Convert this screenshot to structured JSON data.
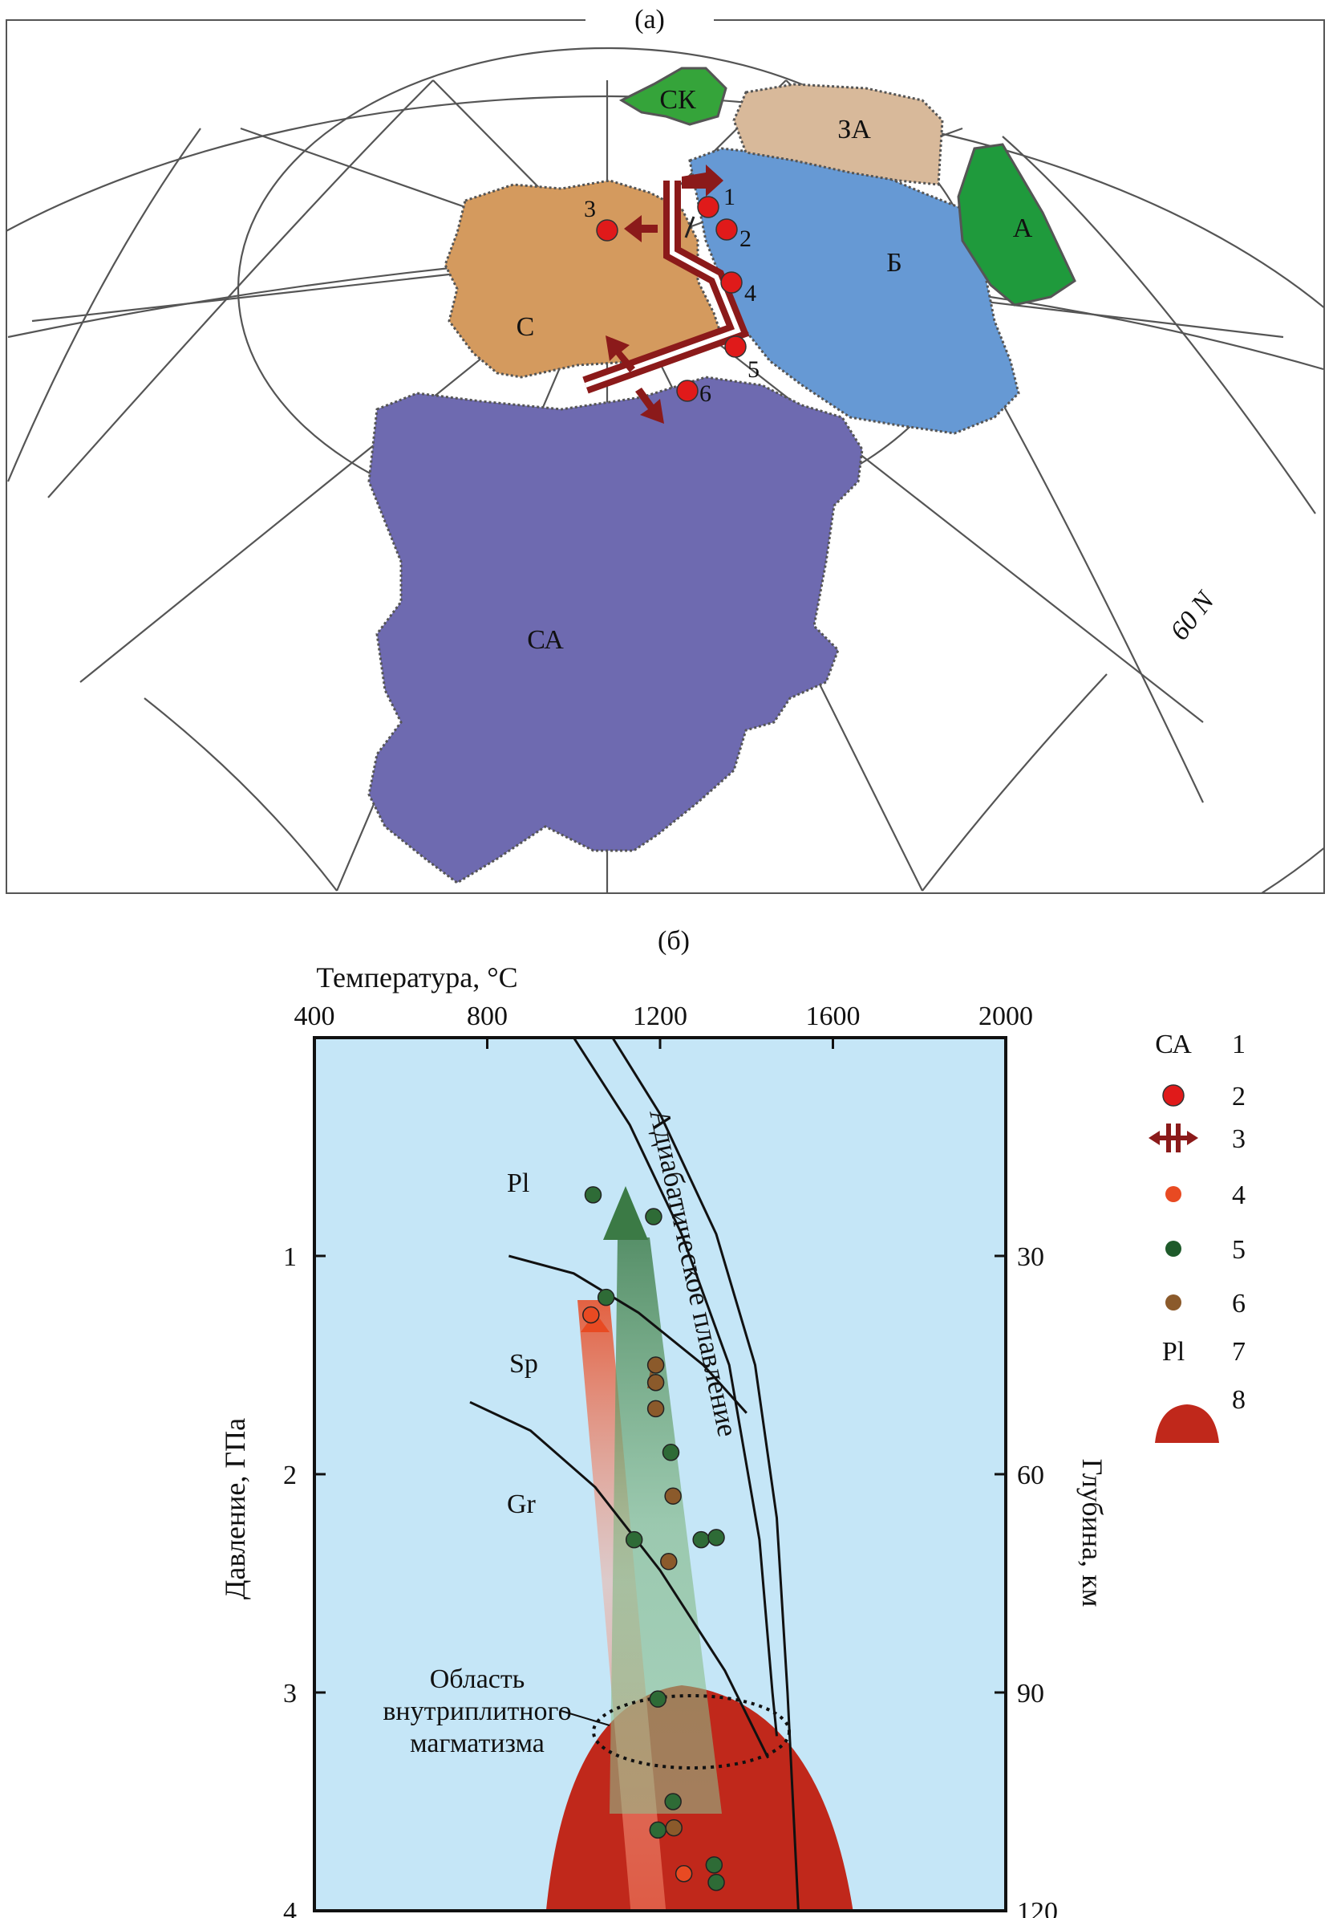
{
  "panel_a": {
    "title": "(a)",
    "latitude_label": "60 N",
    "blocks": [
      {
        "id": "ck",
        "label": "СК",
        "color": "#35a43a"
      },
      {
        "id": "za",
        "label": "ЗА",
        "color": "#d8b99a"
      },
      {
        "id": "a",
        "label": "А",
        "color": "#1f9a3c"
      },
      {
        "id": "b",
        "label": "Б",
        "color": "#6699d4"
      },
      {
        "id": "c",
        "label": "С",
        "color": "#d49a5e"
      },
      {
        "id": "ca",
        "label": "СА",
        "color": "#6e6ab0"
      }
    ],
    "sites": [
      "1",
      "2",
      "3",
      "4",
      "5",
      "6"
    ],
    "rift_color": "#8b1a1a"
  },
  "panel_b": {
    "title": "(б)",
    "x_axis_label": "Температура, °C",
    "y_left_label": "Давление, ГПа",
    "y_right_label": "Глубина, км",
    "x_ticks": [
      "400",
      "800",
      "1200",
      "1600",
      "2000"
    ],
    "y_ticks": [
      "1",
      "2",
      "3",
      "4"
    ],
    "depth_ticks": [
      "30",
      "60",
      "90",
      "120"
    ],
    "facies": [
      "Pl",
      "Sp",
      "Gr"
    ],
    "adiabat_label": "Адиабатическое плавление",
    "region_label_lines": [
      "Область",
      "внутриплитного",
      "магматизма"
    ],
    "colors": {
      "plot_bg": "#c5e6f7",
      "plume": "#c0281b",
      "red_arrow": "#e84a22",
      "green_arrow": "#3b7a45"
    }
  },
  "legend": {
    "items": [
      {
        "number": "1",
        "symbol_text": "СА"
      },
      {
        "number": "2",
        "symbol": "red-dot"
      },
      {
        "number": "3",
        "symbol": "rift-icon"
      },
      {
        "number": "4",
        "symbol": "orange-dot"
      },
      {
        "number": "5",
        "symbol": "green-dot"
      },
      {
        "number": "6",
        "symbol": "brown-dot"
      },
      {
        "number": "7",
        "symbol_text": "Pl"
      },
      {
        "number": "8",
        "symbol": "plume-icon"
      }
    ]
  },
  "chart_data": {
    "type": "scatter",
    "xlabel": "Температура, °C",
    "ylabel": "Давление, ГПа",
    "xlim": [
      400,
      2000
    ],
    "ylim": [
      4,
      0
    ],
    "secondary_ylabel": "Глубина, км",
    "series": [
      {
        "name": "4",
        "color": "#e84a22",
        "points": [
          [
            1040,
            1.27
          ],
          [
            1255,
            3.83
          ]
        ]
      },
      {
        "name": "5",
        "color": "#2e6b36",
        "points": [
          [
            1045,
            0.72
          ],
          [
            1185,
            0.82
          ],
          [
            1075,
            1.19
          ],
          [
            1225,
            1.9
          ],
          [
            1140,
            2.3
          ],
          [
            1295,
            2.3
          ],
          [
            1330,
            2.29
          ],
          [
            1195,
            3.03
          ],
          [
            1230,
            3.5
          ],
          [
            1195,
            3.63
          ],
          [
            1325,
            3.79
          ],
          [
            1330,
            3.87
          ]
        ]
      },
      {
        "name": "6",
        "color": "#8b5a2b",
        "points": [
          [
            1190,
            1.5
          ],
          [
            1190,
            1.58
          ],
          [
            1190,
            1.7
          ],
          [
            1230,
            2.1
          ],
          [
            1220,
            2.4
          ],
          [
            1232,
            3.62
          ]
        ]
      }
    ],
    "lines": [
      {
        "name": "Pl/Sp",
        "points": [
          [
            850,
            1.0
          ],
          [
            1000,
            1.08
          ],
          [
            1150,
            1.26
          ],
          [
            1300,
            1.5
          ],
          [
            1400,
            1.72
          ]
        ]
      },
      {
        "name": "Sp/Gr",
        "points": [
          [
            760,
            1.67
          ],
          [
            900,
            1.8
          ],
          [
            1050,
            2.06
          ],
          [
            1200,
            2.44
          ],
          [
            1350,
            2.9
          ],
          [
            1450,
            3.3
          ]
        ]
      },
      {
        "name": "adiabat_outer",
        "points": [
          [
            1090,
            0
          ],
          [
            1200,
            0.35
          ],
          [
            1330,
            0.9
          ],
          [
            1420,
            1.5
          ],
          [
            1470,
            2.2
          ],
          [
            1495,
            3.0
          ],
          [
            1520,
            4.0
          ]
        ]
      },
      {
        "name": "adiabat_inner",
        "points": [
          [
            1000,
            0
          ],
          [
            1130,
            0.4
          ],
          [
            1250,
            0.9
          ],
          [
            1360,
            1.5
          ],
          [
            1430,
            2.3
          ],
          [
            1460,
            3.0
          ],
          [
            1470,
            3.2
          ]
        ]
      }
    ]
  }
}
